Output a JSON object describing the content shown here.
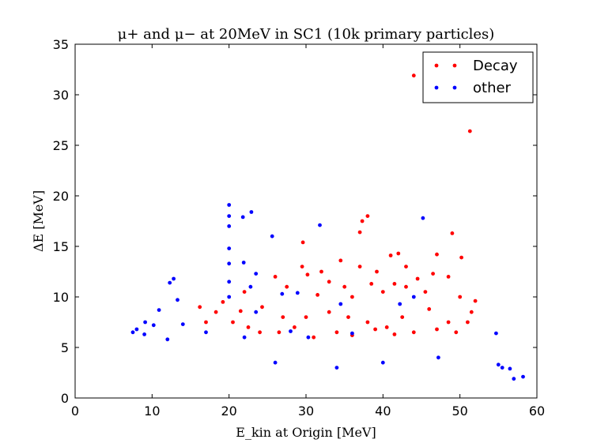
{
  "chart_data": {
    "type": "scatter",
    "title": "μ+ and μ−  at 20MeV in SC1 (10k primary particles)",
    "xlabel": "E_kin at Origin [MeV]",
    "ylabel": "ΔE [MeV]",
    "xlim": [
      0,
      60
    ],
    "ylim": [
      0,
      35
    ],
    "xticks": [
      "0",
      "10",
      "20",
      "30",
      "40",
      "50",
      "60"
    ],
    "yticks": [
      "0",
      "5",
      "10",
      "15",
      "20",
      "25",
      "30",
      "35"
    ],
    "xtick_values": [
      0,
      10,
      20,
      30,
      40,
      50,
      60
    ],
    "ytick_values": [
      0,
      5,
      10,
      15,
      20,
      25,
      30,
      35
    ],
    "grid": false,
    "legend": "top-right",
    "series": [
      {
        "name": "Decay",
        "color": "#ff0000",
        "points": [
          [
            44.0,
            31.9
          ],
          [
            51.3,
            26.4
          ],
          [
            38.0,
            18.0
          ],
          [
            37.3,
            17.5
          ],
          [
            37.0,
            16.4
          ],
          [
            49.0,
            16.3
          ],
          [
            29.6,
            15.4
          ],
          [
            47.0,
            14.2
          ],
          [
            34.5,
            13.6
          ],
          [
            41.0,
            14.1
          ],
          [
            42.0,
            14.3
          ],
          [
            50.2,
            13.9
          ],
          [
            29.5,
            13.0
          ],
          [
            32.0,
            12.5
          ],
          [
            37.0,
            13.0
          ],
          [
            30.2,
            12.2
          ],
          [
            39.2,
            12.5
          ],
          [
            43.0,
            13.0
          ],
          [
            26.0,
            12.0
          ],
          [
            35.0,
            11.0
          ],
          [
            38.5,
            11.3
          ],
          [
            41.5,
            11.3
          ],
          [
            44.5,
            11.8
          ],
          [
            46.5,
            12.3
          ],
          [
            48.5,
            12.0
          ],
          [
            33.0,
            11.5
          ],
          [
            27.5,
            11.0
          ],
          [
            22.0,
            10.5
          ],
          [
            31.5,
            10.2
          ],
          [
            36.0,
            10.0
          ],
          [
            40.0,
            10.5
          ],
          [
            43.0,
            11.0
          ],
          [
            45.5,
            10.5
          ],
          [
            50.0,
            10.0
          ],
          [
            19.2,
            9.5
          ],
          [
            18.3,
            8.5
          ],
          [
            16.2,
            9.0
          ],
          [
            21.5,
            8.6
          ],
          [
            24.3,
            9.0
          ],
          [
            27.0,
            8.0
          ],
          [
            30.0,
            8.0
          ],
          [
            33.0,
            8.5
          ],
          [
            35.5,
            8.0
          ],
          [
            38.0,
            7.5
          ],
          [
            40.5,
            7.0
          ],
          [
            42.5,
            8.0
          ],
          [
            46.0,
            8.8
          ],
          [
            48.5,
            7.5
          ],
          [
            51.5,
            8.5
          ],
          [
            52.0,
            9.6
          ],
          [
            17.0,
            7.5
          ],
          [
            20.5,
            7.5
          ],
          [
            22.5,
            7.0
          ],
          [
            24.0,
            6.5
          ],
          [
            26.5,
            6.5
          ],
          [
            28.5,
            7.0
          ],
          [
            31.0,
            6.0
          ],
          [
            34.0,
            6.5
          ],
          [
            36.0,
            6.2
          ],
          [
            39.0,
            6.8
          ],
          [
            41.5,
            6.3
          ],
          [
            44.0,
            6.5
          ],
          [
            47.0,
            6.8
          ],
          [
            49.5,
            6.5
          ],
          [
            51.0,
            7.5
          ]
        ]
      },
      {
        "name": "other",
        "color": "#0000ff",
        "points": [
          [
            20.0,
            19.1
          ],
          [
            20.0,
            18.0
          ],
          [
            20.0,
            17.0
          ],
          [
            20.0,
            14.8
          ],
          [
            20.0,
            13.3
          ],
          [
            20.0,
            11.5
          ],
          [
            20.0,
            10.0
          ],
          [
            22.9,
            18.4
          ],
          [
            21.8,
            17.9
          ],
          [
            45.2,
            17.8
          ],
          [
            31.8,
            17.1
          ],
          [
            25.6,
            16.0
          ],
          [
            21.9,
            13.4
          ],
          [
            12.8,
            11.8
          ],
          [
            12.3,
            11.4
          ],
          [
            22.8,
            11.0
          ],
          [
            23.5,
            12.3
          ],
          [
            13.3,
            9.7
          ],
          [
            10.9,
            8.7
          ],
          [
            26.9,
            10.3
          ],
          [
            28.9,
            10.4
          ],
          [
            44.0,
            10.0
          ],
          [
            42.2,
            9.3
          ],
          [
            23.5,
            8.5
          ],
          [
            9.1,
            7.5
          ],
          [
            34.5,
            9.3
          ],
          [
            8.0,
            6.8
          ],
          [
            7.5,
            6.5
          ],
          [
            9.0,
            6.3
          ],
          [
            10.2,
            7.2
          ],
          [
            12.0,
            5.8
          ],
          [
            14.0,
            7.3
          ],
          [
            17.0,
            6.5
          ],
          [
            22.0,
            6.0
          ],
          [
            28.0,
            6.6
          ],
          [
            30.3,
            6.0
          ],
          [
            36.0,
            6.4
          ],
          [
            54.7,
            6.4
          ],
          [
            55.0,
            3.3
          ],
          [
            55.5,
            3.0
          ],
          [
            56.5,
            2.9
          ],
          [
            57.0,
            1.9
          ],
          [
            58.2,
            2.1
          ],
          [
            47.2,
            4.0
          ],
          [
            40.0,
            3.5
          ],
          [
            34.0,
            3.0
          ],
          [
            26.0,
            3.5
          ]
        ]
      }
    ]
  }
}
